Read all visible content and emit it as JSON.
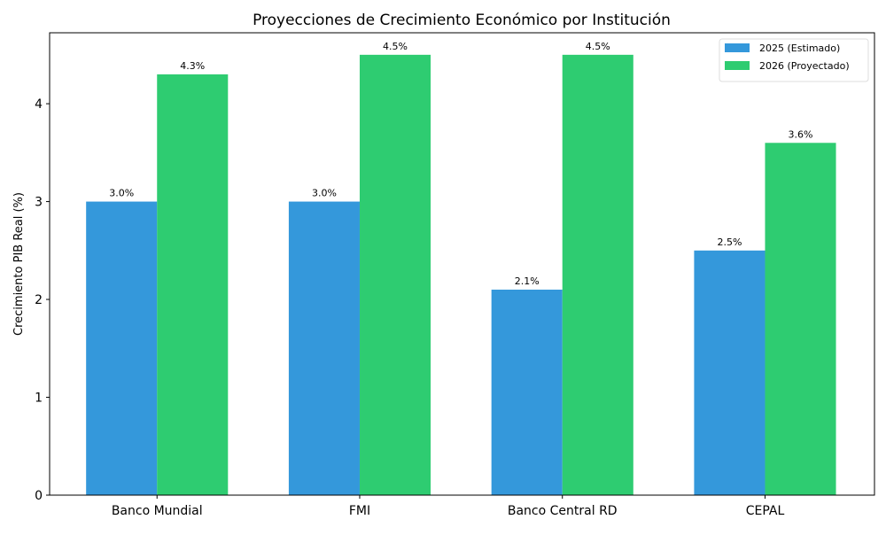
{
  "chart_data": {
    "type": "bar",
    "title": "Proyecciones de Crecimiento Económico por Institución",
    "xlabel": "",
    "ylabel": "Crecimiento PIB Real (%)",
    "categories": [
      "Banco Mundial",
      "FMI",
      "Banco Central RD",
      "CEPAL"
    ],
    "series": [
      {
        "name": "2025 (Estimado)",
        "values": [
          3.0,
          3.0,
          2.1,
          2.5
        ],
        "labels": [
          "3.0%",
          "3.0%",
          "2.1%",
          "2.5%"
        ],
        "color": "#3498db"
      },
      {
        "name": "2026 (Proyectado)",
        "values": [
          4.3,
          4.5,
          4.5,
          3.6
        ],
        "labels": [
          "4.3%",
          "4.5%",
          "4.5%",
          "3.6%"
        ],
        "color": "#2ecc71"
      }
    ],
    "ylim": [
      0,
      4.725
    ],
    "yticks": [
      "0",
      "1",
      "2",
      "3",
      "4"
    ],
    "grid": false,
    "legend": "top-right"
  }
}
